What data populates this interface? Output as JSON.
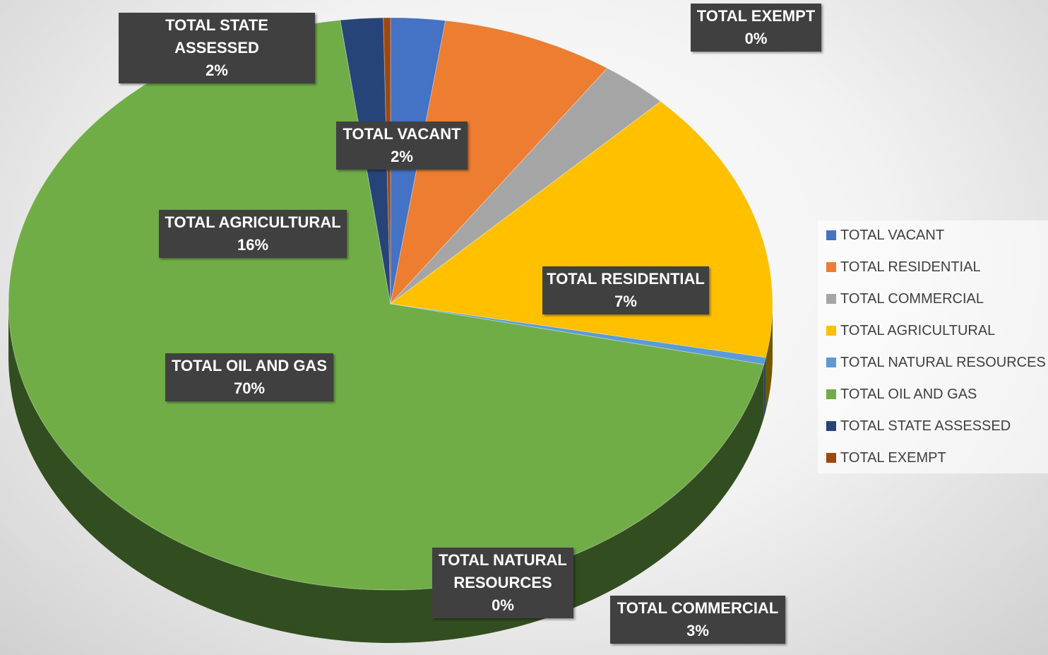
{
  "chart_data": {
    "type": "pie",
    "categories": [
      "TOTAL VACANT",
      "TOTAL RESIDENTIAL",
      "TOTAL COMMERCIAL",
      "TOTAL AGRICULTURAL",
      "TOTAL NATURAL RESOURCES",
      "TOTAL OIL AND GAS",
      "TOTAL STATE ASSESSED",
      "TOTAL EXEMPT"
    ],
    "values": [
      2.3,
      7.3,
      2.9,
      15.5,
      0.4,
      69.5,
      1.8,
      0.3
    ],
    "value_labels": [
      "2%",
      "7%",
      "3%",
      "16%",
      "0%",
      "70%",
      "2%",
      "0%"
    ],
    "colors": [
      "#4472c4",
      "#ed7d31",
      "#a5a5a5",
      "#ffc000",
      "#5b9bd5",
      "#70ad47",
      "#264478",
      "#9e480e"
    ],
    "legend": "right"
  }
}
